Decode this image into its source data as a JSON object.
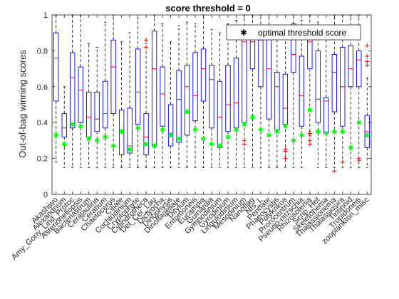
{
  "chart_data": {
    "type": "boxplot",
    "title": "score threshold = 0",
    "ylabel": "Out-of-bag winning scores",
    "xlabel": "",
    "ylim": [
      0,
      1
    ],
    "yticks": [
      "0",
      "0.2",
      "0.4",
      "0.6",
      "0.8",
      "1"
    ],
    "grid": false,
    "legend": {
      "position": "top-right",
      "entries": [
        "optimal threshold score"
      ]
    },
    "colors": {
      "box": "#0000ff",
      "median": "#ff0000",
      "whisker": "#000000",
      "outlier": "#ff0000",
      "marker": "#00ff00"
    },
    "categories": [
      {
        "label": "Akashiwo",
        "q1": 0.52,
        "median": 0.76,
        "q3": 0.9,
        "wlo": 0.18,
        "whi": 1.0,
        "outliers": [],
        "opt": 0.33
      },
      {
        "label": "Alexandrium",
        "q1": 0.32,
        "median": 0.37,
        "q3": 0.45,
        "wlo": 0.15,
        "whi": 0.6,
        "outliers": [],
        "opt": 0.28
      },
      {
        "label": "Amy_Gony_Lind_Protoc",
        "q1": 0.37,
        "median": 0.65,
        "q3": 0.79,
        "wlo": 0.15,
        "whi": 1.0,
        "outliers": [],
        "opt": 0.39
      },
      {
        "label": "Asterionellopsis",
        "q1": 0.4,
        "median": 0.58,
        "q3": 0.71,
        "wlo": 0.15,
        "whi": 1.0,
        "outliers": [],
        "opt": 0.38
      },
      {
        "label": "Bacteriastrum",
        "q1": 0.32,
        "median": 0.43,
        "q3": 0.57,
        "wlo": 0.15,
        "whi": 0.84,
        "outliers": [],
        "opt": 0.31
      },
      {
        "label": "Cerataulina",
        "q1": 0.35,
        "median": 0.42,
        "q3": 0.57,
        "wlo": 0.15,
        "whi": 0.82,
        "outliers": [],
        "opt": 0.3
      },
      {
        "label": "Ceratium",
        "q1": 0.37,
        "median": 0.45,
        "q3": 0.63,
        "wlo": 0.15,
        "whi": 0.96,
        "outliers": [],
        "opt": 0.32
      },
      {
        "label": "Chaetoceros",
        "q1": 0.45,
        "median": 0.71,
        "q3": 0.86,
        "wlo": 0.15,
        "whi": 1.0,
        "outliers": [],
        "opt": 0.27
      },
      {
        "label": "Ciliate",
        "q1": 0.22,
        "median": 0.35,
        "q3": 0.47,
        "wlo": 0.15,
        "whi": 0.85,
        "outliers": [],
        "opt": 0.35
      },
      {
        "label": "Cochlodinium",
        "q1": 0.23,
        "median": 0.27,
        "q3": 0.48,
        "wlo": 0.15,
        "whi": 0.9,
        "outliers": [],
        "opt": 0.25
      },
      {
        "label": "Cryptophyte",
        "q1": 0.39,
        "median": 0.57,
        "q3": 0.81,
        "wlo": 0.15,
        "whi": 0.98,
        "outliers": [],
        "opt": 0.37
      },
      {
        "label": "Cylindrotheca",
        "q1": 0.22,
        "median": 0.32,
        "q3": 0.45,
        "wlo": 0.15,
        "whi": 0.84,
        "outliers": [
          0.86,
          0.82
        ],
        "opt": 0.28
      },
      {
        "label": "Det_Cer_Lau",
        "q1": 0.27,
        "median": 0.7,
        "q3": 0.91,
        "wlo": 0.15,
        "whi": 1.0,
        "outliers": [],
        "opt": 0.27
      },
      {
        "label": "Dictyocha",
        "q1": 0.38,
        "median": 0.56,
        "q3": 0.71,
        "wlo": 0.15,
        "whi": 0.95,
        "outliers": [],
        "opt": 0.36
      },
      {
        "label": "Dinophysis",
        "q1": 0.27,
        "median": 0.34,
        "q3": 0.5,
        "wlo": 0.15,
        "whi": 0.85,
        "outliers": [],
        "opt": 0.33
      },
      {
        "label": "Dinoflagellate",
        "q1": 0.29,
        "median": 0.53,
        "q3": 0.69,
        "wlo": 0.15,
        "whi": 0.94,
        "outliers": [],
        "opt": 0.31
      },
      {
        "label": "Ditylum",
        "q1": 0.33,
        "median": 0.6,
        "q3": 0.72,
        "wlo": 0.15,
        "whi": 0.96,
        "outliers": [],
        "opt": 0.46
      },
      {
        "label": "Entomoneis",
        "q1": 0.41,
        "median": 0.55,
        "q3": 0.79,
        "wlo": 0.15,
        "whi": 0.95,
        "outliers": [],
        "opt": 0.36
      },
      {
        "label": "Eucampia",
        "q1": 0.52,
        "median": 0.7,
        "q3": 0.81,
        "wlo": 0.15,
        "whi": 1.0,
        "outliers": [],
        "opt": 0.31
      },
      {
        "label": "Guinardia",
        "q1": 0.37,
        "median": 0.64,
        "q3": 0.72,
        "wlo": 0.15,
        "whi": 0.92,
        "outliers": [],
        "opt": 0.28
      },
      {
        "label": "Gymnodinium",
        "q1": 0.26,
        "median": 0.43,
        "q3": 0.63,
        "wlo": 0.15,
        "whi": 0.9,
        "outliers": [],
        "opt": 0.27
      },
      {
        "label": "Gyrodinium",
        "q1": 0.35,
        "median": 0.5,
        "q3": 0.72,
        "wlo": 0.15,
        "whi": 0.95,
        "outliers": [],
        "opt": 0.32
      },
      {
        "label": "Lingulodinium",
        "q1": 0.37,
        "median": 0.51,
        "q3": 0.76,
        "wlo": 0.15,
        "whi": 0.97,
        "outliers": [],
        "opt": 0.36
      },
      {
        "label": "Mesodinium",
        "q1": 0.4,
        "median": 0.85,
        "q3": 0.88,
        "wlo": 0.15,
        "whi": 1.0,
        "outliers": [
          0.3,
          0.28
        ],
        "opt": 0.39
      },
      {
        "label": "Nanoflag",
        "q1": 0.7,
        "median": 0.85,
        "q3": 0.9,
        "wlo": 0.15,
        "whi": 1.0,
        "outliers": [],
        "opt": 0.43
      },
      {
        "label": "Nfs_L",
        "q1": 0.6,
        "median": 0.86,
        "q3": 0.92,
        "wlo": 0.15,
        "whi": 1.0,
        "outliers": [],
        "opt": 0.36
      },
      {
        "label": "Pennate",
        "q1": 0.42,
        "median": 0.7,
        "q3": 0.89,
        "wlo": 0.15,
        "whi": 1.0,
        "outliers": [],
        "opt": 0.33
      },
      {
        "label": "Phaeocystis",
        "q1": 0.36,
        "median": 0.6,
        "q3": 0.68,
        "wlo": 0.15,
        "whi": 0.9,
        "outliers": [],
        "opt": 0.35
      },
      {
        "label": "Polykrikos",
        "q1": 0.39,
        "median": 0.48,
        "q3": 0.67,
        "wlo": 0.15,
        "whi": 0.92,
        "outliers": [
          0.25,
          0.24,
          0.2
        ],
        "opt": 0.38
      },
      {
        "label": "Prorocentrum",
        "q1": 0.68,
        "median": 0.78,
        "q3": 0.95,
        "wlo": 0.15,
        "whi": 1.0,
        "outliers": [],
        "opt": 0.3
      },
      {
        "label": "Pseudo-nitzschia",
        "q1": 0.38,
        "median": 0.55,
        "q3": 0.77,
        "wlo": 0.15,
        "whi": 0.97,
        "outliers": [],
        "opt": 0.33
      },
      {
        "label": "Rhizosolenia",
        "q1": 0.7,
        "median": 0.85,
        "q3": 0.93,
        "wlo": 0.35,
        "whi": 1.0,
        "outliers": [
          0.34,
          0.33,
          0.3,
          0.28
        ],
        "opt": 0.47
      },
      {
        "label": "Scrip_Het",
        "q1": 0.4,
        "median": 0.53,
        "q3": 0.8,
        "wlo": 0.15,
        "whi": 0.96,
        "outliers": [],
        "opt": 0.35
      },
      {
        "label": "Skeletonema",
        "q1": 0.34,
        "median": 0.52,
        "q3": 0.54,
        "wlo": 0.15,
        "whi": 0.9,
        "outliers": [],
        "opt": 0.34
      },
      {
        "label": "Thalassionema",
        "q1": 0.46,
        "median": 0.68,
        "q3": 0.78,
        "wlo": 0.15,
        "whi": 1.0,
        "outliers": [
          0.13
        ],
        "opt": 0.35
      },
      {
        "label": "Thalassiosira",
        "q1": 0.38,
        "median": 0.6,
        "q3": 0.82,
        "wlo": 0.15,
        "whi": 1.0,
        "outliers": [
          0.18
        ],
        "opt": 0.35
      },
      {
        "label": "Tintinnid",
        "q1": 0.6,
        "median": 0.7,
        "q3": 0.83,
        "wlo": 0.15,
        "whi": 1.0,
        "outliers": [],
        "opt": 0.26
      },
      {
        "label": "Tropidoneis",
        "q1": 0.6,
        "median": 0.75,
        "q3": 0.8,
        "wlo": 0.15,
        "whi": 1.0,
        "outliers": [
          0.2,
          0.19
        ],
        "opt": 0.4
      },
      {
        "label": "zooplankton_misc",
        "q1": 0.26,
        "median": 0.35,
        "q3": 0.44,
        "wlo": 0.15,
        "whi": 0.65,
        "outliers": [
          0.83,
          0.77,
          0.74,
          0.72
        ],
        "opt": 0.33
      }
    ]
  }
}
